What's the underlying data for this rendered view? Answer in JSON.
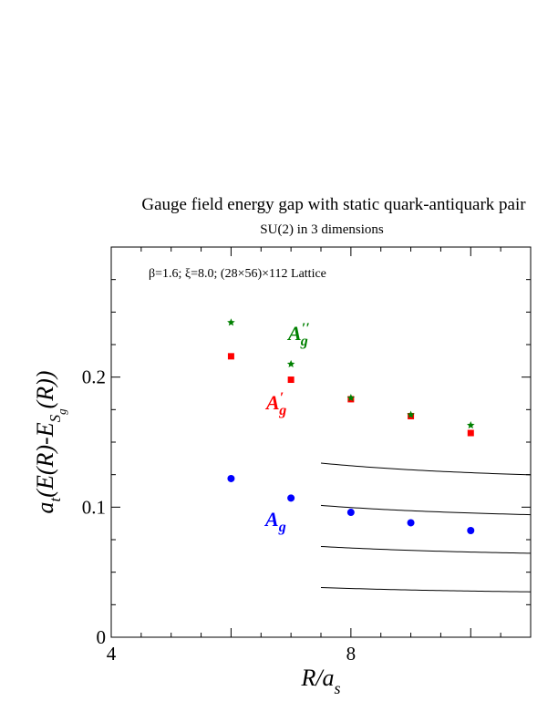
{
  "chart_data": {
    "type": "scatter",
    "title": "Gauge field energy gap with static quark-antiquark pair",
    "subtitle": "SU(2) in 3 dimensions",
    "annotation": "β=1.6;  ξ=8.0;  (28×56)×112 Lattice",
    "xlabel": {
      "main": "R/a",
      "sub": "s"
    },
    "ylabel": {
      "a": "a",
      "a_sub": "t",
      "body": "(E(R)-E",
      "E_sub": "S",
      "E_subsub": "g",
      "tail": "(R))"
    },
    "xlim": [
      4,
      11
    ],
    "ylim": [
      0,
      0.3
    ],
    "x_ticks": [
      "4",
      "8"
    ],
    "y_ticks": [
      "0",
      "0.1",
      "0.2"
    ],
    "series": [
      {
        "label": "A",
        "label_sub": "g",
        "label_prime": "",
        "color": "#0000ff",
        "marker": "circle",
        "x": [
          6,
          7,
          8,
          9,
          10
        ],
        "y": [
          0.122,
          0.107,
          0.096,
          0.088,
          0.082
        ]
      },
      {
        "label": "A",
        "label_sub": "g",
        "label_prime": "′",
        "color": "#ff0000",
        "marker": "square",
        "x": [
          6,
          7,
          8,
          9,
          10
        ],
        "y": [
          0.216,
          0.198,
          0.183,
          0.17,
          0.157
        ]
      },
      {
        "label": "A",
        "label_sub": "g",
        "label_prime": "′′",
        "color": "#008000",
        "marker": "star",
        "x": [
          6,
          7,
          8,
          9,
          10
        ],
        "y": [
          0.242,
          0.21,
          0.184,
          0.171,
          0.163
        ]
      }
    ],
    "curves": [
      {
        "color": "#000000",
        "x_range": [
          7.5,
          11
        ],
        "c": 0.032,
        "b": 0.35
      },
      {
        "color": "#000000",
        "x_range": [
          7.5,
          11
        ],
        "c": 0.06,
        "b": 0.55
      },
      {
        "color": "#000000",
        "x_range": [
          7.5,
          11
        ],
        "c": 0.088,
        "b": 0.75
      },
      {
        "color": "#000000",
        "x_range": [
          7.5,
          11
        ],
        "c": 0.117,
        "b": 0.95
      }
    ]
  }
}
